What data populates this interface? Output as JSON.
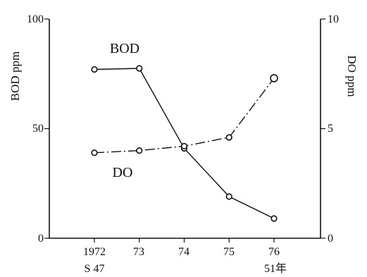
{
  "chart_data": {
    "type": "line",
    "x": [
      1972,
      1973,
      1974,
      1975,
      1976
    ],
    "x_tick_labels": [
      "1972",
      "73",
      "74",
      "75",
      "76"
    ],
    "x_sub_labels": [
      "S 47",
      "",
      "",
      "",
      "51年"
    ],
    "xlim": [
      1971,
      1977
    ],
    "left_axis": {
      "label": "BOD ppm",
      "ylim": [
        0,
        100
      ],
      "ticks": [
        "0",
        "50",
        "100"
      ]
    },
    "right_axis": {
      "label": "DO ppm",
      "ylim": [
        0,
        10
      ],
      "ticks": [
        "0",
        "5",
        "10"
      ]
    },
    "series": [
      {
        "name": "BOD",
        "axis": "left",
        "style": "solid",
        "values": [
          77,
          77.5,
          41,
          19,
          9
        ]
      },
      {
        "name": "DO",
        "axis": "right",
        "style": "dash-dot",
        "values": [
          3.9,
          4.0,
          4.2,
          4.6,
          7.3
        ]
      }
    ],
    "grid": false
  }
}
